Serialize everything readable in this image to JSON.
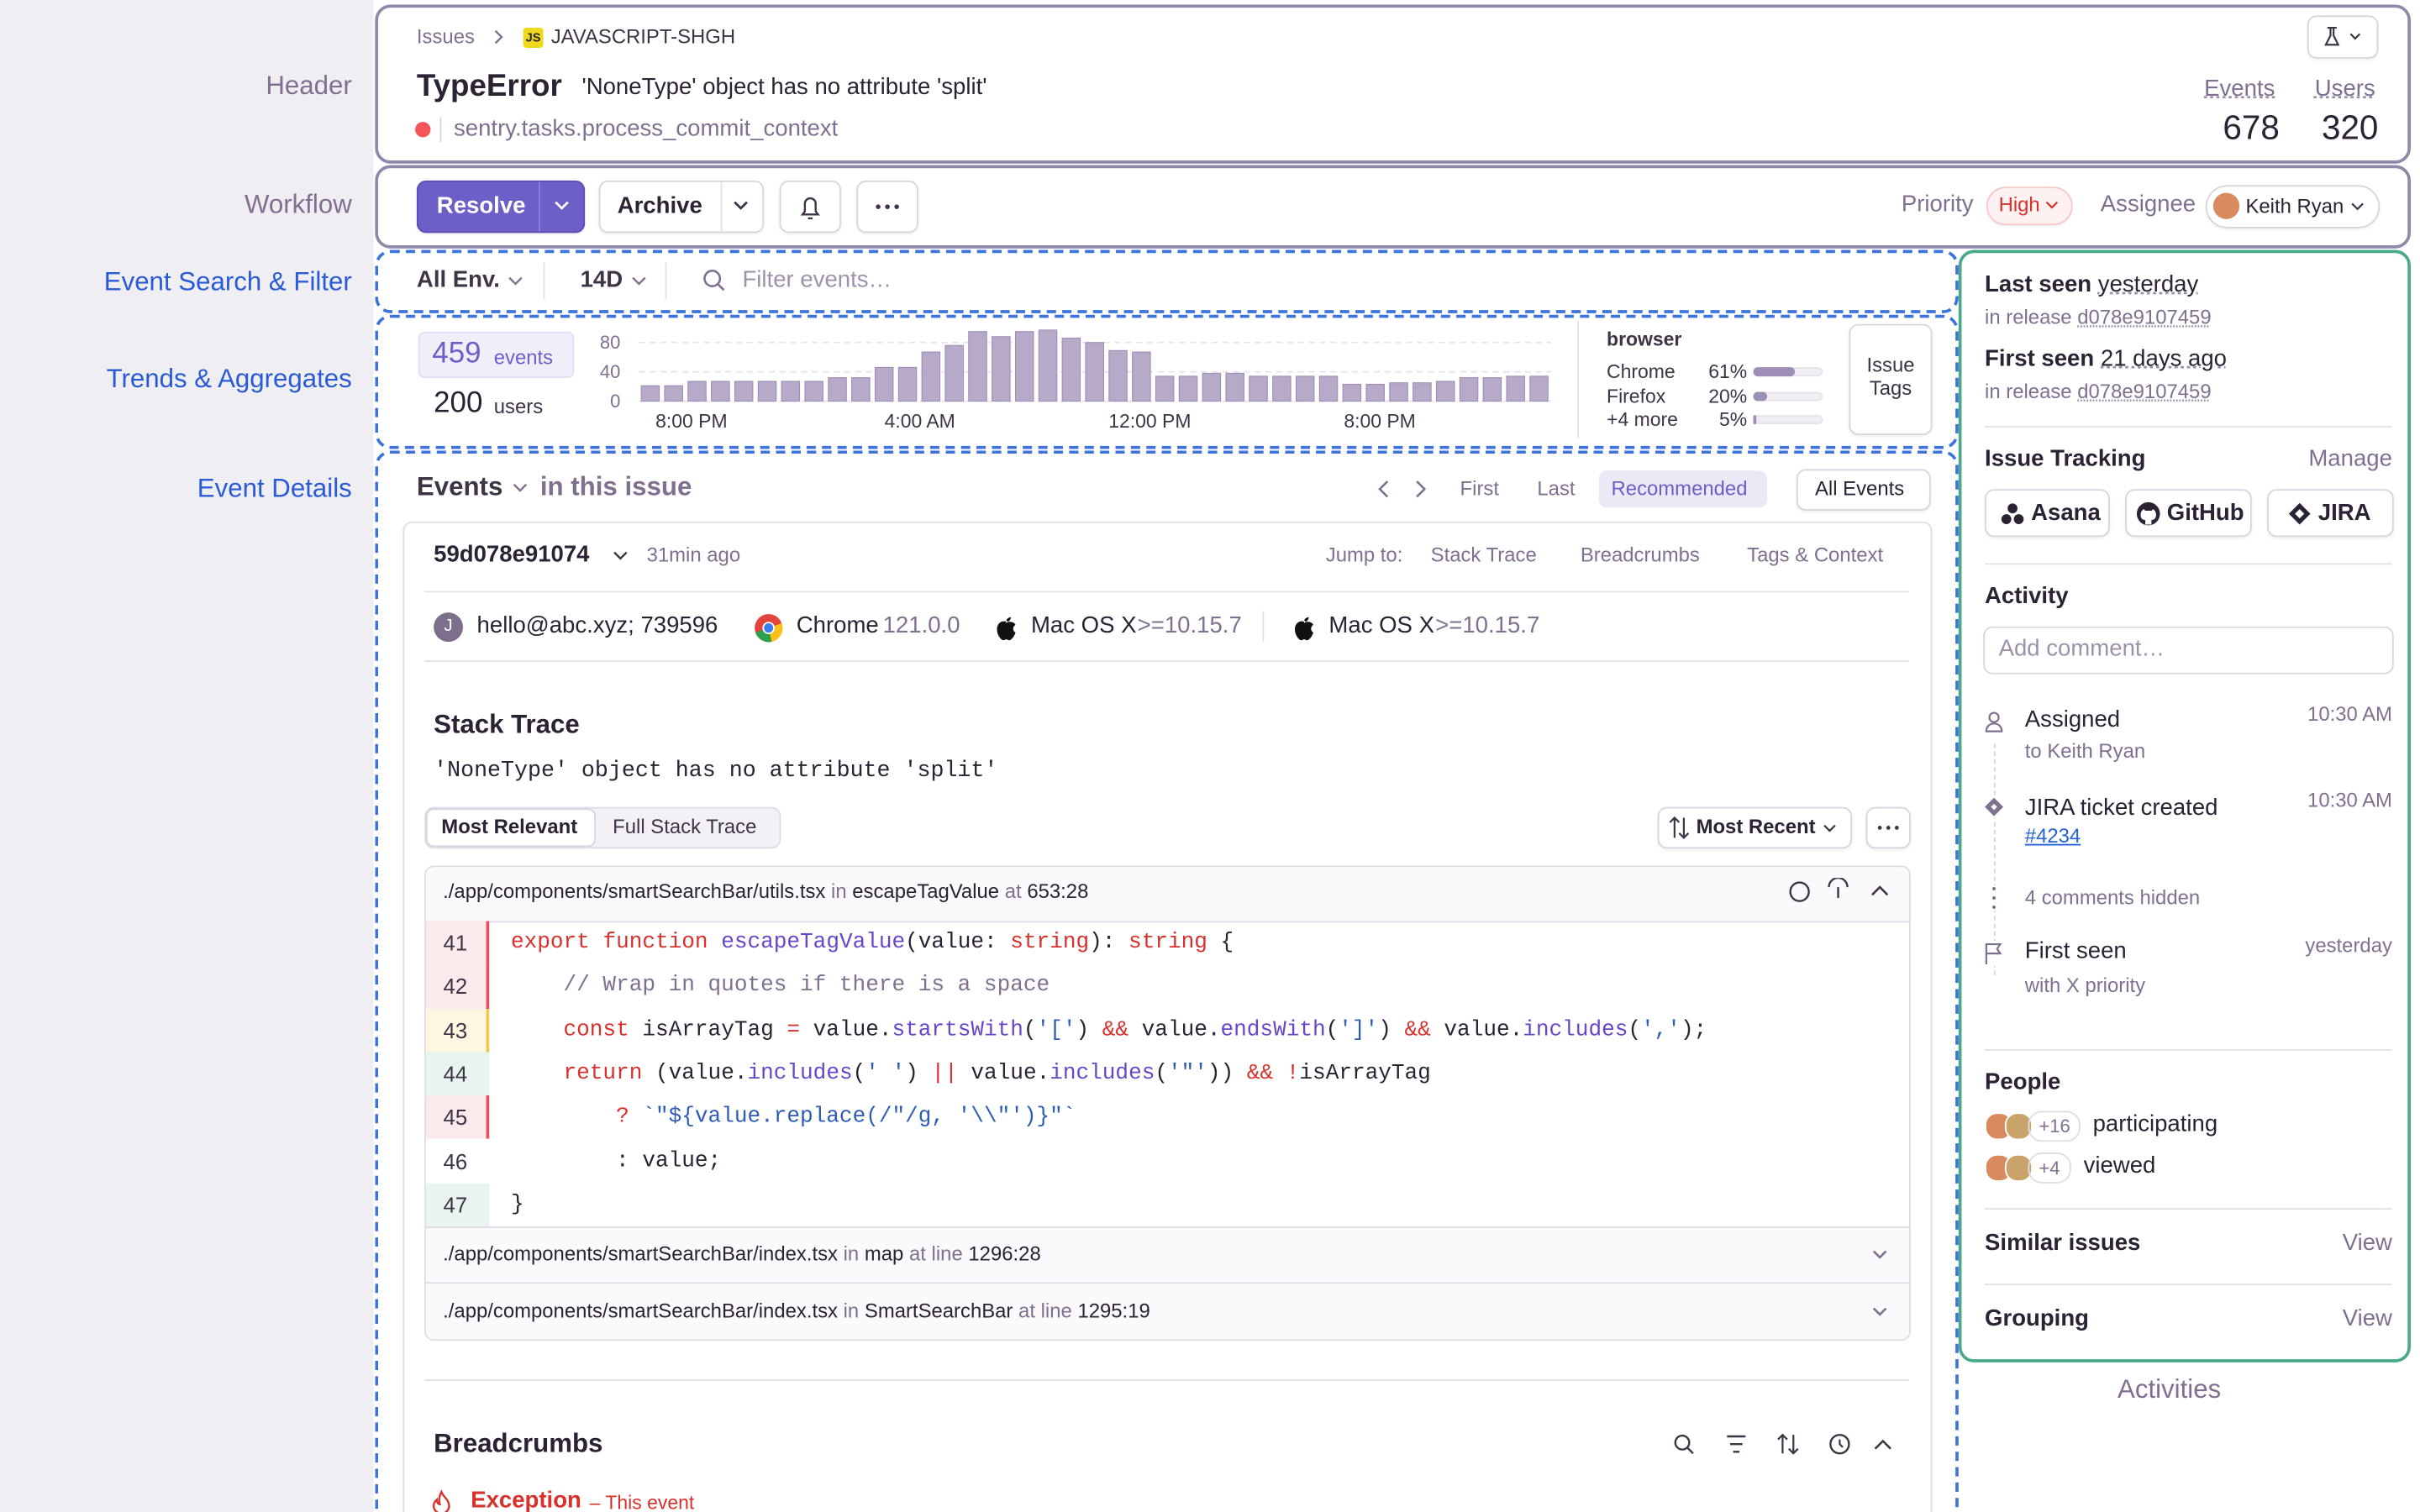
{
  "annotations": {
    "header": "Header",
    "workflow": "Workflow",
    "filter": "Event Search & Filter",
    "trends": "Trends & Aggregates",
    "details": "Event Details",
    "activities": "Activities"
  },
  "header": {
    "breadcrumb": [
      "Issues",
      "JAVASCRIPT-SHGH"
    ],
    "project_badge": "JS",
    "title": "TypeError",
    "message": "'NoneType' object has no attribute 'split'",
    "culprit": "sentry.tasks.process_commit_context",
    "stats": [
      {
        "label": "Events",
        "value": 678
      },
      {
        "label": "Users",
        "value": 320
      }
    ]
  },
  "workflow": {
    "resolve": "Resolve",
    "archive": "Archive",
    "priority_label": "Priority",
    "priority": "High",
    "assignee_label": "Assignee",
    "assignee": "Keith Ryan"
  },
  "filter": {
    "environment": "All Env.",
    "period": "14D",
    "search_placeholder": "Filter events…"
  },
  "trends": {
    "events": {
      "value": 459,
      "label": "events"
    },
    "users": {
      "value": 200,
      "label": "users"
    },
    "chart": {
      "type": "bar",
      "values": [
        21,
        21,
        27,
        27,
        27,
        27,
        27,
        27,
        32,
        32,
        46,
        46,
        67,
        76,
        95,
        88,
        95,
        97,
        86,
        80,
        69,
        67,
        34,
        34,
        38,
        38,
        34,
        34,
        34,
        34,
        23,
        23,
        25,
        25,
        27,
        32,
        32,
        34,
        34
      ],
      "ylim": [
        0,
        100
      ],
      "yticks": [
        0,
        40,
        80
      ],
      "xtick_labels": [
        "8:00 PM",
        "4:00 AM",
        "12:00 PM",
        "8:00 PM"
      ]
    },
    "tags": {
      "title": "browser",
      "rows": [
        {
          "name": "Chrome",
          "pct": {
            "value": 61,
            "label": "61%"
          }
        },
        {
          "name": "Firefox",
          "pct": {
            "value": 20,
            "label": "20%"
          }
        },
        {
          "name": "+4 more",
          "pct": {
            "value": 5,
            "label": "5%"
          }
        }
      ]
    },
    "issue_tags": "Issue Tags"
  },
  "events": {
    "title": "Events",
    "subtitle": "in this issue",
    "nav": [
      "First",
      "Last",
      "Recommended"
    ],
    "all_events": "All Events",
    "event_id": "59d078e91074",
    "age": "31min ago",
    "jump_label": "Jump to:",
    "jump": [
      "Stack Trace",
      "Breadcrumbs",
      "Tags & Context"
    ],
    "context": {
      "user_initial": "J",
      "user": "hello@abc.xyz; 739596",
      "browser": "Chrome",
      "browser_version": "121.0.0",
      "os": [
        {
          "name": "Mac OS X",
          "version": ">=10.15.7"
        },
        {
          "name": "Mac OS X",
          "version": ">=10.15.7"
        }
      ]
    },
    "stack": {
      "title": "Stack Trace",
      "message": "'NoneType' object has no attribute 'split'",
      "tabs": [
        "Most Relevant",
        "Full Stack Trace"
      ],
      "sort": "Most Recent",
      "frames": [
        {
          "file": "./app/components/smartSearchBar/utils.tsx",
          "in": "in",
          "function": "escapeTagValue",
          "at": "at",
          "location": "653:28"
        },
        {
          "file": "./app/components/smartSearchBar/index.tsx",
          "in": "in",
          "function": "map",
          "at": "at line",
          "location": "1296:28"
        },
        {
          "file": "./app/components/smartSearchBar/index.tsx",
          "in": "in",
          "function": "SmartSearchBar",
          "at": "at line",
          "location": "1295:19"
        }
      ],
      "code": {
        "line_numbers": [
          41,
          42,
          43,
          44,
          45,
          46,
          47
        ],
        "lines": [
          "export function escapeTagValue(value: string): string {",
          "    // Wrap in quotes if there is a space",
          "    const isArrayTag = value.startsWith('[') && value.endsWith(']') && value.includes(',');",
          "    return (value.includes(' ') || value.includes('\"')) && !isArrayTag",
          "        ? `\"${value.replace(/\"/g, '\\\\\"')}\"`",
          "        : value;",
          "}"
        ]
      }
    },
    "breadcrumbs": {
      "title": "Breadcrumbs",
      "first": "Exception",
      "first_note": "– This event"
    }
  },
  "sidebar": {
    "last_seen": {
      "label": "Last seen",
      "value": "yesterday",
      "release_label": "in release",
      "release": "d078e9107459"
    },
    "first_seen": {
      "label": "First seen",
      "value": "21 days ago",
      "release_label": "in release",
      "release": "d078e9107459"
    },
    "tracking": {
      "title": "Issue Tracking",
      "manage": "Manage",
      "services": [
        "Asana",
        "GitHub",
        "JIRA"
      ]
    },
    "activity": {
      "title": "Activity",
      "placeholder": "Add comment…",
      "items": [
        {
          "title": "Assigned",
          "detail": "to Keith Ryan",
          "time": "10:30 AM"
        },
        {
          "title": "JIRA ticket created",
          "detail": "#4234",
          "time": "10:30 AM"
        },
        {
          "title": "4 comments hidden"
        },
        {
          "title": "First seen",
          "detail": "with X priority",
          "time": "yesterday"
        }
      ]
    },
    "people": {
      "title": "People",
      "rows": [
        {
          "count": "+16",
          "label": "participating"
        },
        {
          "count": "+4",
          "label": "viewed"
        }
      ]
    },
    "similar": {
      "title": "Similar issues",
      "action": "View"
    },
    "grouping": {
      "title": "Grouping",
      "action": "View"
    }
  }
}
